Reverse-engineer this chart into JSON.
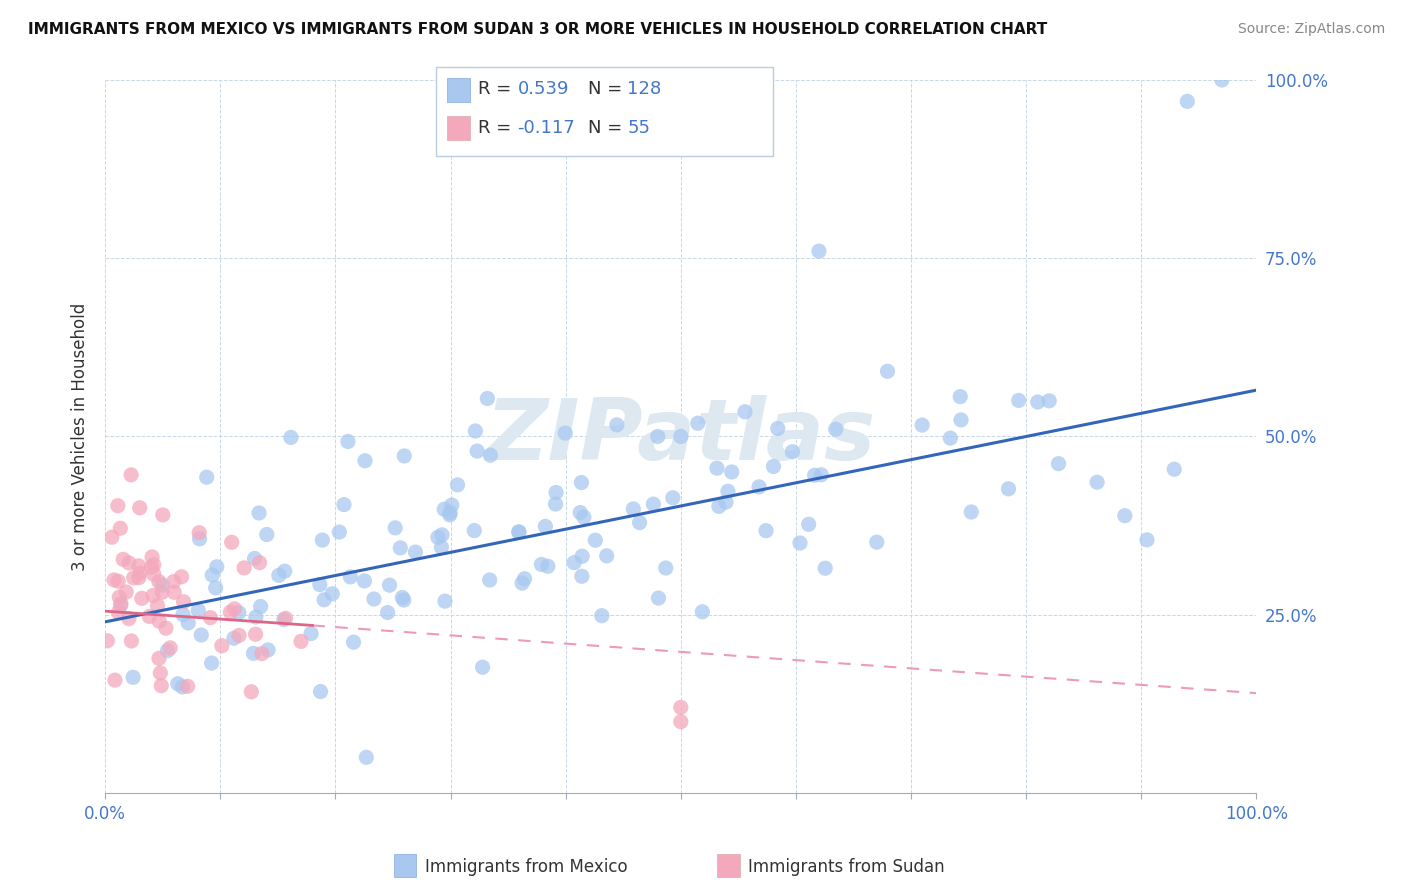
{
  "title": "IMMIGRANTS FROM MEXICO VS IMMIGRANTS FROM SUDAN 3 OR MORE VEHICLES IN HOUSEHOLD CORRELATION CHART",
  "source": "Source: ZipAtlas.com",
  "ylabel": "3 or more Vehicles in Household",
  "mexico_R": 0.539,
  "mexico_N": 128,
  "sudan_R": -0.117,
  "sudan_N": 55,
  "mexico_color": "#a8c8f0",
  "sudan_color": "#f4a8bc",
  "mexico_line_color": "#3366bb",
  "sudan_line_color": "#dd6688",
  "sudan_line_dashed_color": "#ee99bb",
  "background_color": "#ffffff",
  "grid_color": "#c8d8e8",
  "watermark_color": "#dde8f0",
  "legend_mexico": "Immigrants from Mexico",
  "legend_sudan": "Immigrants from Sudan",
  "text_color_blue": "#4477cc",
  "text_color_dark": "#333333",
  "xlim": [
    0,
    1
  ],
  "ylim": [
    0,
    1
  ],
  "x_ticks": [
    0,
    0.1,
    0.2,
    0.3,
    0.4,
    0.5,
    0.6,
    0.7,
    0.8,
    0.9,
    1.0
  ],
  "y_ticks": [
    0,
    0.25,
    0.5,
    0.75,
    1.0
  ],
  "right_ylabels": [
    "25.0%",
    "50.0%",
    "75.0%",
    "100.0%"
  ],
  "right_yticks": [
    0.25,
    0.5,
    0.75,
    1.0
  ],
  "mexico_line_x0": 0.0,
  "mexico_line_y0": 0.24,
  "mexico_line_x1": 1.0,
  "mexico_line_y1": 0.565,
  "sudan_line_solid_x0": 0.0,
  "sudan_line_solid_y0": 0.255,
  "sudan_line_solid_x1": 0.18,
  "sudan_line_solid_y1": 0.235,
  "sudan_line_dashed_x0": 0.18,
  "sudan_line_dashed_y0": 0.235,
  "sudan_line_dashed_x1": 1.0,
  "sudan_line_dashed_y1": 0.14
}
